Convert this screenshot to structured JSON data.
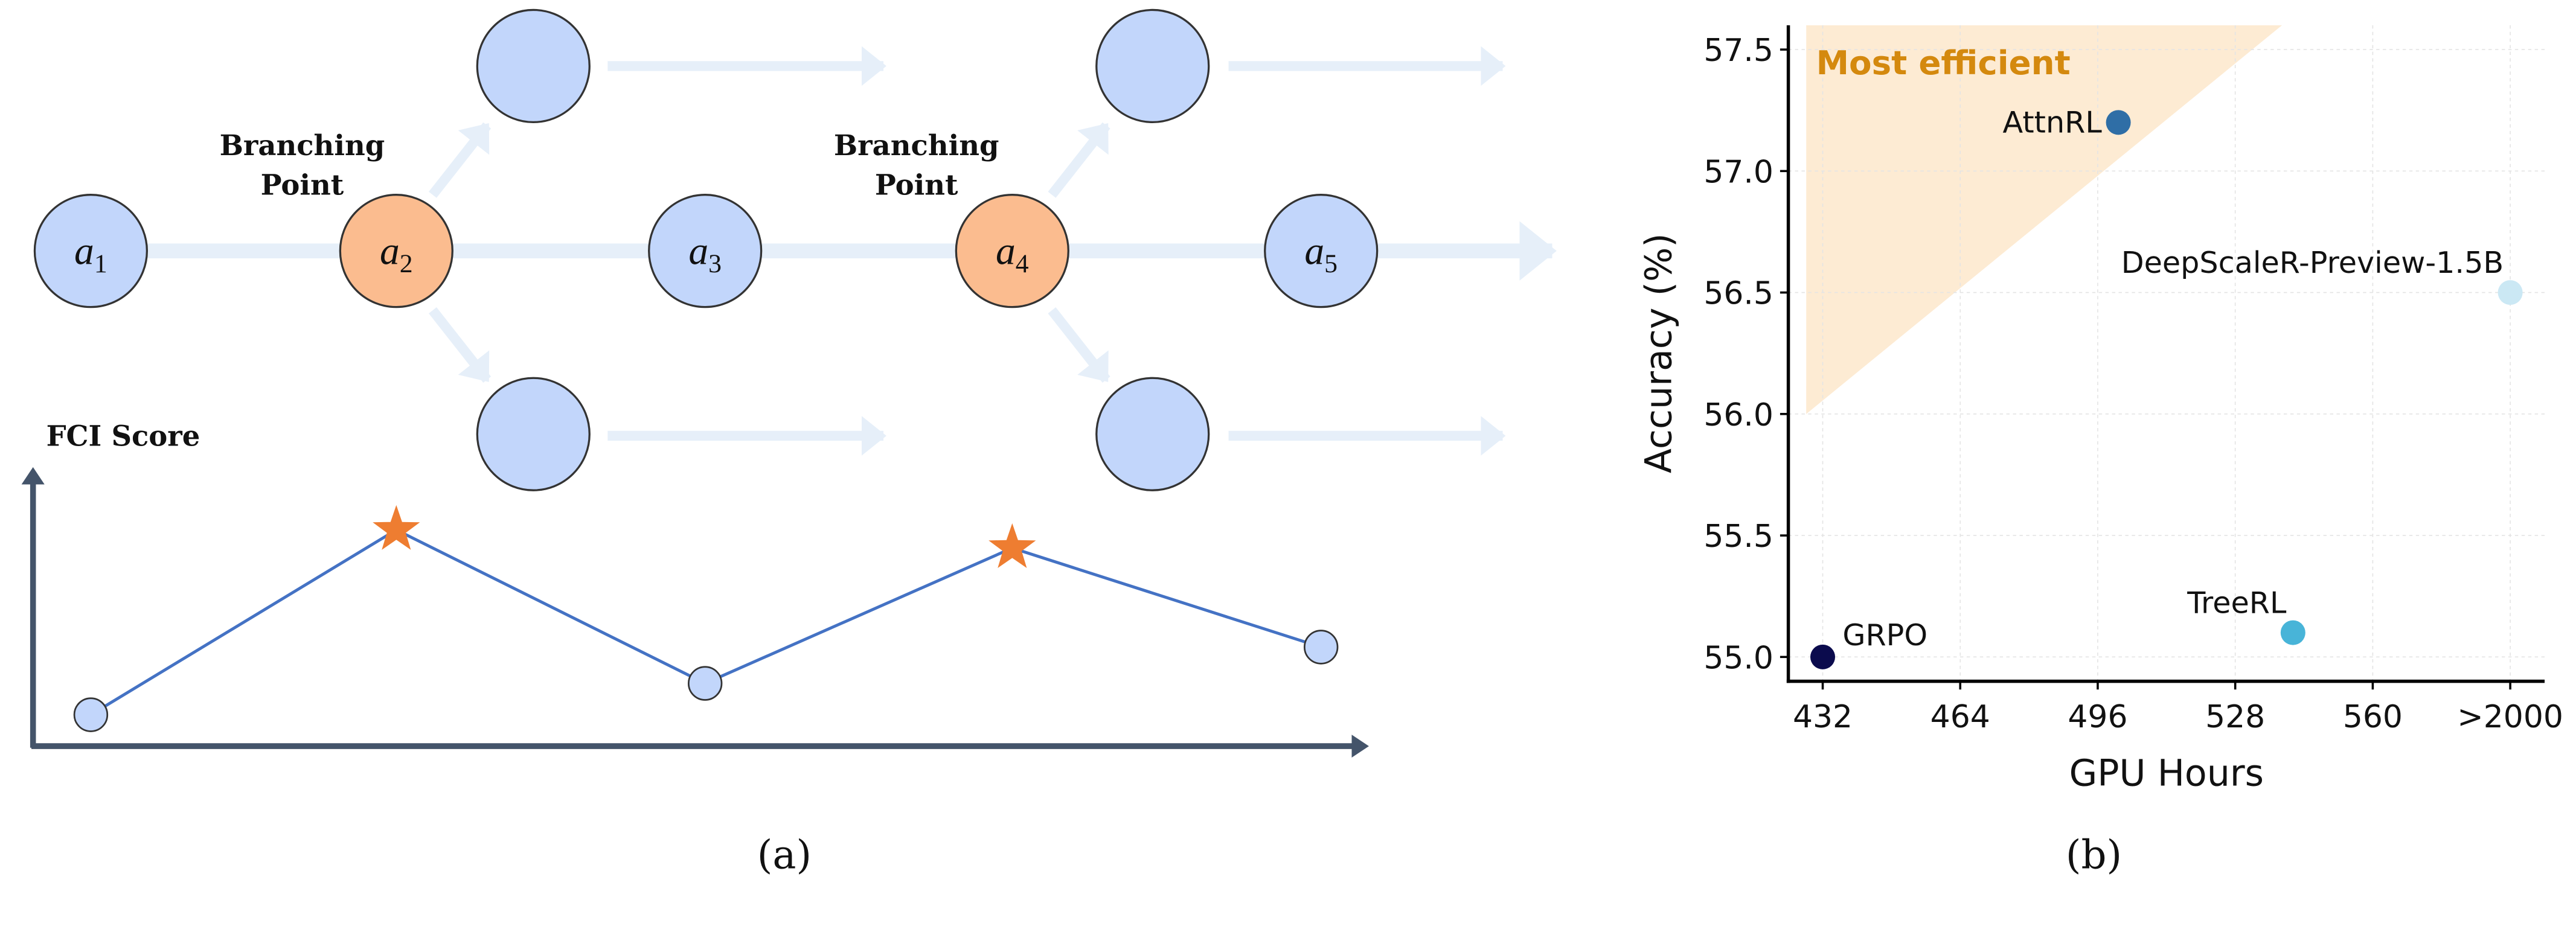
{
  "panel_a": {
    "caption": "(a)",
    "branch_label_line1": "Branching",
    "branch_label_line2": "Point",
    "fci_label": "FCI Score",
    "nodes": [
      {
        "letter": "a",
        "sub": "1"
      },
      {
        "letter": "a",
        "sub": "2"
      },
      {
        "letter": "a",
        "sub": "3"
      },
      {
        "letter": "a",
        "sub": "4"
      },
      {
        "letter": "a",
        "sub": "5"
      }
    ],
    "colors": {
      "node": "#c2d6fb",
      "branch_node": "#fbbc8f",
      "arrow": "#e6eff9",
      "line": "#4472c4",
      "star": "#ee7d31",
      "axis": "#44546a"
    }
  },
  "panel_b": {
    "caption": "(b)"
  },
  "chart_data": {
    "type": "scatter",
    "xlabel": "GPU Hours",
    "ylabel": "Accuracy (%)",
    "x_tick_labels": [
      "432",
      "464",
      "496",
      "528",
      "560",
      ">2000"
    ],
    "y_ticks": [
      55.0,
      55.5,
      56.0,
      56.5,
      57.0,
      57.5
    ],
    "y_tick_labels": [
      "55.0",
      "55.5",
      "56.0",
      "56.5",
      "57.0",
      "57.5"
    ],
    "ylim": [
      54.9,
      57.6
    ],
    "xlim_index": [
      -0.25,
      5.25
    ],
    "grid": true,
    "annotation": "Most efficient",
    "efficient_region": [
      [
        -0.12,
        57.6
      ],
      [
        3.34,
        57.6
      ],
      [
        -0.12,
        56.0
      ]
    ],
    "efficient_color": "#fdebd3",
    "annotation_color": "#d4890e",
    "points": [
      {
        "name": "GRPO",
        "x": 432,
        "x_index": 0,
        "y": 55.0,
        "color": "#0b0b4d",
        "label_pos": "right"
      },
      {
        "name": "AttnRL",
        "x": 501,
        "x_index": 2.15,
        "y": 57.2,
        "color": "#2f6ea6",
        "label_pos": "left"
      },
      {
        "name": "TreeRL",
        "x": 541,
        "x_index": 3.42,
        "y": 55.1,
        "color": "#48b4d8",
        "label_pos": "upper-left"
      },
      {
        "name": "DeepScaleR-Preview-1.5B",
        "x": ">2000",
        "x_index": 5,
        "y": 56.5,
        "color": "#cbe8f4",
        "label_pos": "upper-left"
      }
    ]
  }
}
